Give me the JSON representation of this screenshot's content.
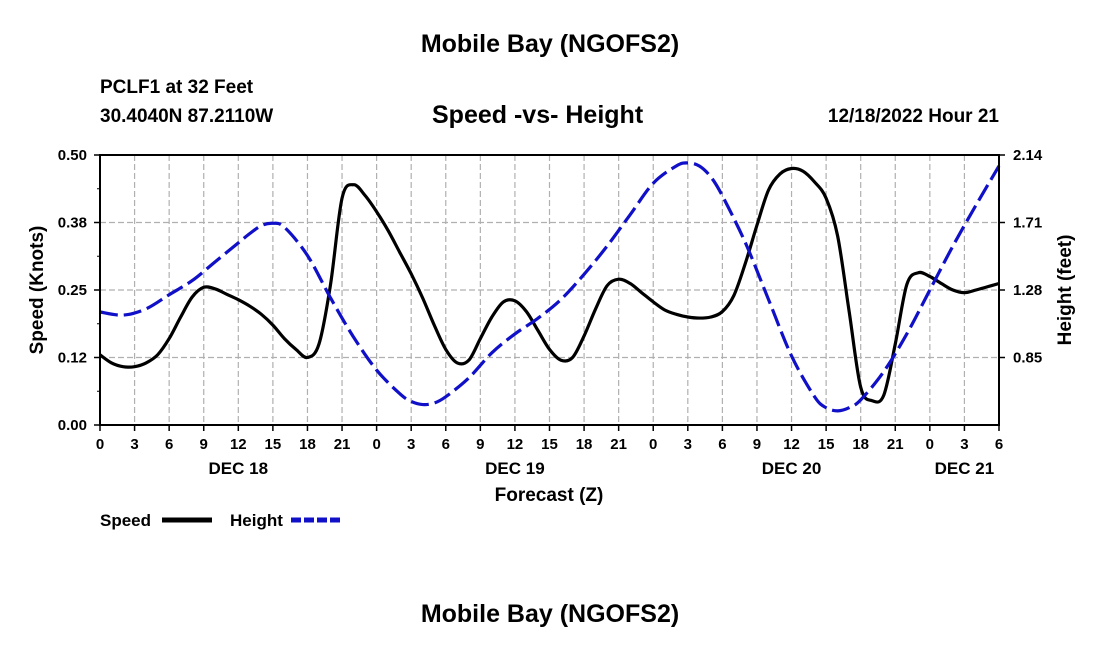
{
  "header": {
    "title": "Mobile Bay (NGOFS2)",
    "station": "PCLF1 at 32 Feet",
    "coords": "30.4040N  87.2110W",
    "subtitle": "Speed -vs- Height",
    "datetime": "12/18/2022 Hour 21"
  },
  "footer": {
    "title": "Mobile Bay (NGOFS2)"
  },
  "colors": {
    "speed": "#000000",
    "height": "#1010c8",
    "grid": "#b0b0b0"
  },
  "chart_data": {
    "type": "line",
    "title": "Speed -vs- Height",
    "xlabel": "Forecast (Z)",
    "ylabel": "Speed (Knots)",
    "ylabel_right": "Height (feet)",
    "grid": true,
    "legend_placement": "bottom-left",
    "xlim": [
      0,
      78
    ],
    "ylim": [
      0,
      0.5
    ],
    "ylim_right": [
      0.42,
      2.14
    ],
    "x_ticks": [
      0,
      3,
      6,
      9,
      12,
      15,
      18,
      21,
      24,
      27,
      30,
      33,
      36,
      39,
      42,
      45,
      48,
      51,
      54,
      57,
      60,
      63,
      66,
      69,
      72,
      75,
      78
    ],
    "x_tick_labels": [
      "0",
      "3",
      "6",
      "9",
      "12",
      "15",
      "18",
      "21",
      "0",
      "3",
      "6",
      "9",
      "12",
      "15",
      "18",
      "21",
      "0",
      "3",
      "6",
      "9",
      "12",
      "15",
      "18",
      "21",
      "0",
      "3",
      "6"
    ],
    "date_labels": [
      {
        "x": 12,
        "label": "DEC 18"
      },
      {
        "x": 36,
        "label": "DEC 19"
      },
      {
        "x": 60,
        "label": "DEC 20"
      },
      {
        "x": 75,
        "label": "DEC 21"
      }
    ],
    "y_ticks": [
      0,
      0.125,
      0.25,
      0.375,
      0.5
    ],
    "y_tick_labels": [
      "0.00",
      "0.12",
      "0.25",
      "0.38",
      "0.50"
    ],
    "y_ticks_right": [
      0.85,
      1.28,
      1.71,
      2.14
    ],
    "y_tick_labels_right": [
      "0.85",
      "1.28",
      "1.71",
      "2.14"
    ],
    "series": [
      {
        "name": "Speed",
        "axis": "left",
        "dash": "solid",
        "x": [
          0,
          1,
          2,
          3,
          4,
          5,
          6,
          7,
          8,
          9,
          10,
          11,
          12,
          13,
          14,
          15,
          16,
          17,
          18,
          19,
          20,
          21,
          22,
          23,
          24,
          25,
          26,
          27,
          28,
          29,
          30,
          31,
          32,
          33,
          34,
          35,
          36,
          37,
          38,
          39,
          40,
          41,
          42,
          43,
          44,
          45,
          46,
          47,
          48,
          49,
          50,
          51,
          52,
          53,
          54,
          55,
          56,
          57,
          58,
          59,
          60,
          61,
          62,
          63,
          64,
          65,
          66,
          67,
          68,
          69,
          70,
          71,
          72,
          73,
          74,
          75,
          76,
          77,
          78
        ],
        "values": [
          0.13,
          0.115,
          0.108,
          0.108,
          0.115,
          0.13,
          0.16,
          0.2,
          0.237,
          0.255,
          0.252,
          0.242,
          0.232,
          0.22,
          0.205,
          0.185,
          0.16,
          0.14,
          0.125,
          0.15,
          0.26,
          0.42,
          0.445,
          0.425,
          0.395,
          0.36,
          0.32,
          0.28,
          0.235,
          0.185,
          0.14,
          0.115,
          0.12,
          0.16,
          0.2,
          0.228,
          0.23,
          0.21,
          0.175,
          0.14,
          0.12,
          0.125,
          0.165,
          0.215,
          0.258,
          0.27,
          0.262,
          0.245,
          0.228,
          0.213,
          0.205,
          0.2,
          0.198,
          0.2,
          0.21,
          0.24,
          0.3,
          0.37,
          0.435,
          0.465,
          0.475,
          0.47,
          0.45,
          0.42,
          0.35,
          0.21,
          0.07,
          0.045,
          0.055,
          0.15,
          0.26,
          0.282,
          0.275,
          0.262,
          0.25,
          0.245,
          0.25,
          0.256,
          0.262
        ]
      },
      {
        "name": "Height",
        "axis": "right",
        "dash": "dashed",
        "x": [
          0,
          2,
          4,
          6,
          8,
          10,
          12,
          13,
          14,
          15,
          16,
          18,
          20,
          22,
          24,
          26,
          27,
          28,
          29,
          30,
          32,
          34,
          36,
          38,
          40,
          42,
          44,
          46,
          48,
          50,
          51,
          52,
          53,
          54,
          56,
          58,
          60,
          62,
          63,
          64,
          65,
          66,
          68,
          70,
          72,
          74,
          76,
          78
        ],
        "values": [
          1.14,
          1.12,
          1.16,
          1.25,
          1.34,
          1.46,
          1.58,
          1.64,
          1.69,
          1.705,
          1.68,
          1.5,
          1.23,
          0.98,
          0.77,
          0.62,
          0.57,
          0.55,
          0.56,
          0.6,
          0.72,
          0.88,
          1.0,
          1.1,
          1.22,
          1.38,
          1.56,
          1.76,
          1.96,
          2.07,
          2.09,
          2.07,
          2.0,
          1.88,
          1.58,
          1.22,
          0.86,
          0.6,
          0.53,
          0.51,
          0.53,
          0.58,
          0.76,
          1.0,
          1.28,
          1.56,
          1.82,
          2.07
        ]
      }
    ]
  }
}
